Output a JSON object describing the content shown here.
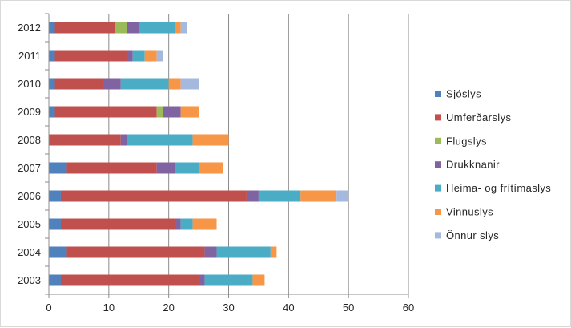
{
  "chart_data": {
    "type": "bar",
    "orientation": "horizontal",
    "stacked": true,
    "categories": [
      "2003",
      "2004",
      "2005",
      "2006",
      "2007",
      "2008",
      "2009",
      "2010",
      "2011",
      "2012"
    ],
    "series": [
      {
        "name": "Sjóslys",
        "color": "#4f81bd",
        "values": [
          2,
          3,
          2,
          2,
          3,
          0,
          1,
          1,
          1,
          1
        ]
      },
      {
        "name": "Umferðarslys",
        "color": "#c0504d",
        "values": [
          23,
          23,
          19,
          31,
          15,
          12,
          17,
          8,
          12,
          10
        ]
      },
      {
        "name": "Flugslys",
        "color": "#9bbb59",
        "values": [
          0,
          0,
          0,
          0,
          0,
          0,
          1,
          0,
          0,
          2
        ]
      },
      {
        "name": "Drukknanir",
        "color": "#8064a2",
        "values": [
          1,
          2,
          1,
          2,
          3,
          1,
          3,
          3,
          1,
          2
        ]
      },
      {
        "name": "Heima- og frítímaslys",
        "color": "#4bacc6",
        "values": [
          8,
          9,
          2,
          7,
          4,
          11,
          0,
          8,
          2,
          6
        ]
      },
      {
        "name": "Vinnuslys",
        "color": "#f79646",
        "values": [
          2,
          1,
          4,
          6,
          4,
          6,
          3,
          2,
          2,
          1
        ]
      },
      {
        "name": "Önnur slys",
        "color": "#a5b8dd",
        "values": [
          0,
          0,
          0,
          2,
          0,
          0,
          0,
          3,
          1,
          1
        ]
      }
    ],
    "xlim": [
      0,
      60
    ],
    "xticks": [
      "0",
      "10",
      "20",
      "30",
      "40",
      "50",
      "60"
    ],
    "grid": "vertical",
    "legend_position": "right"
  }
}
